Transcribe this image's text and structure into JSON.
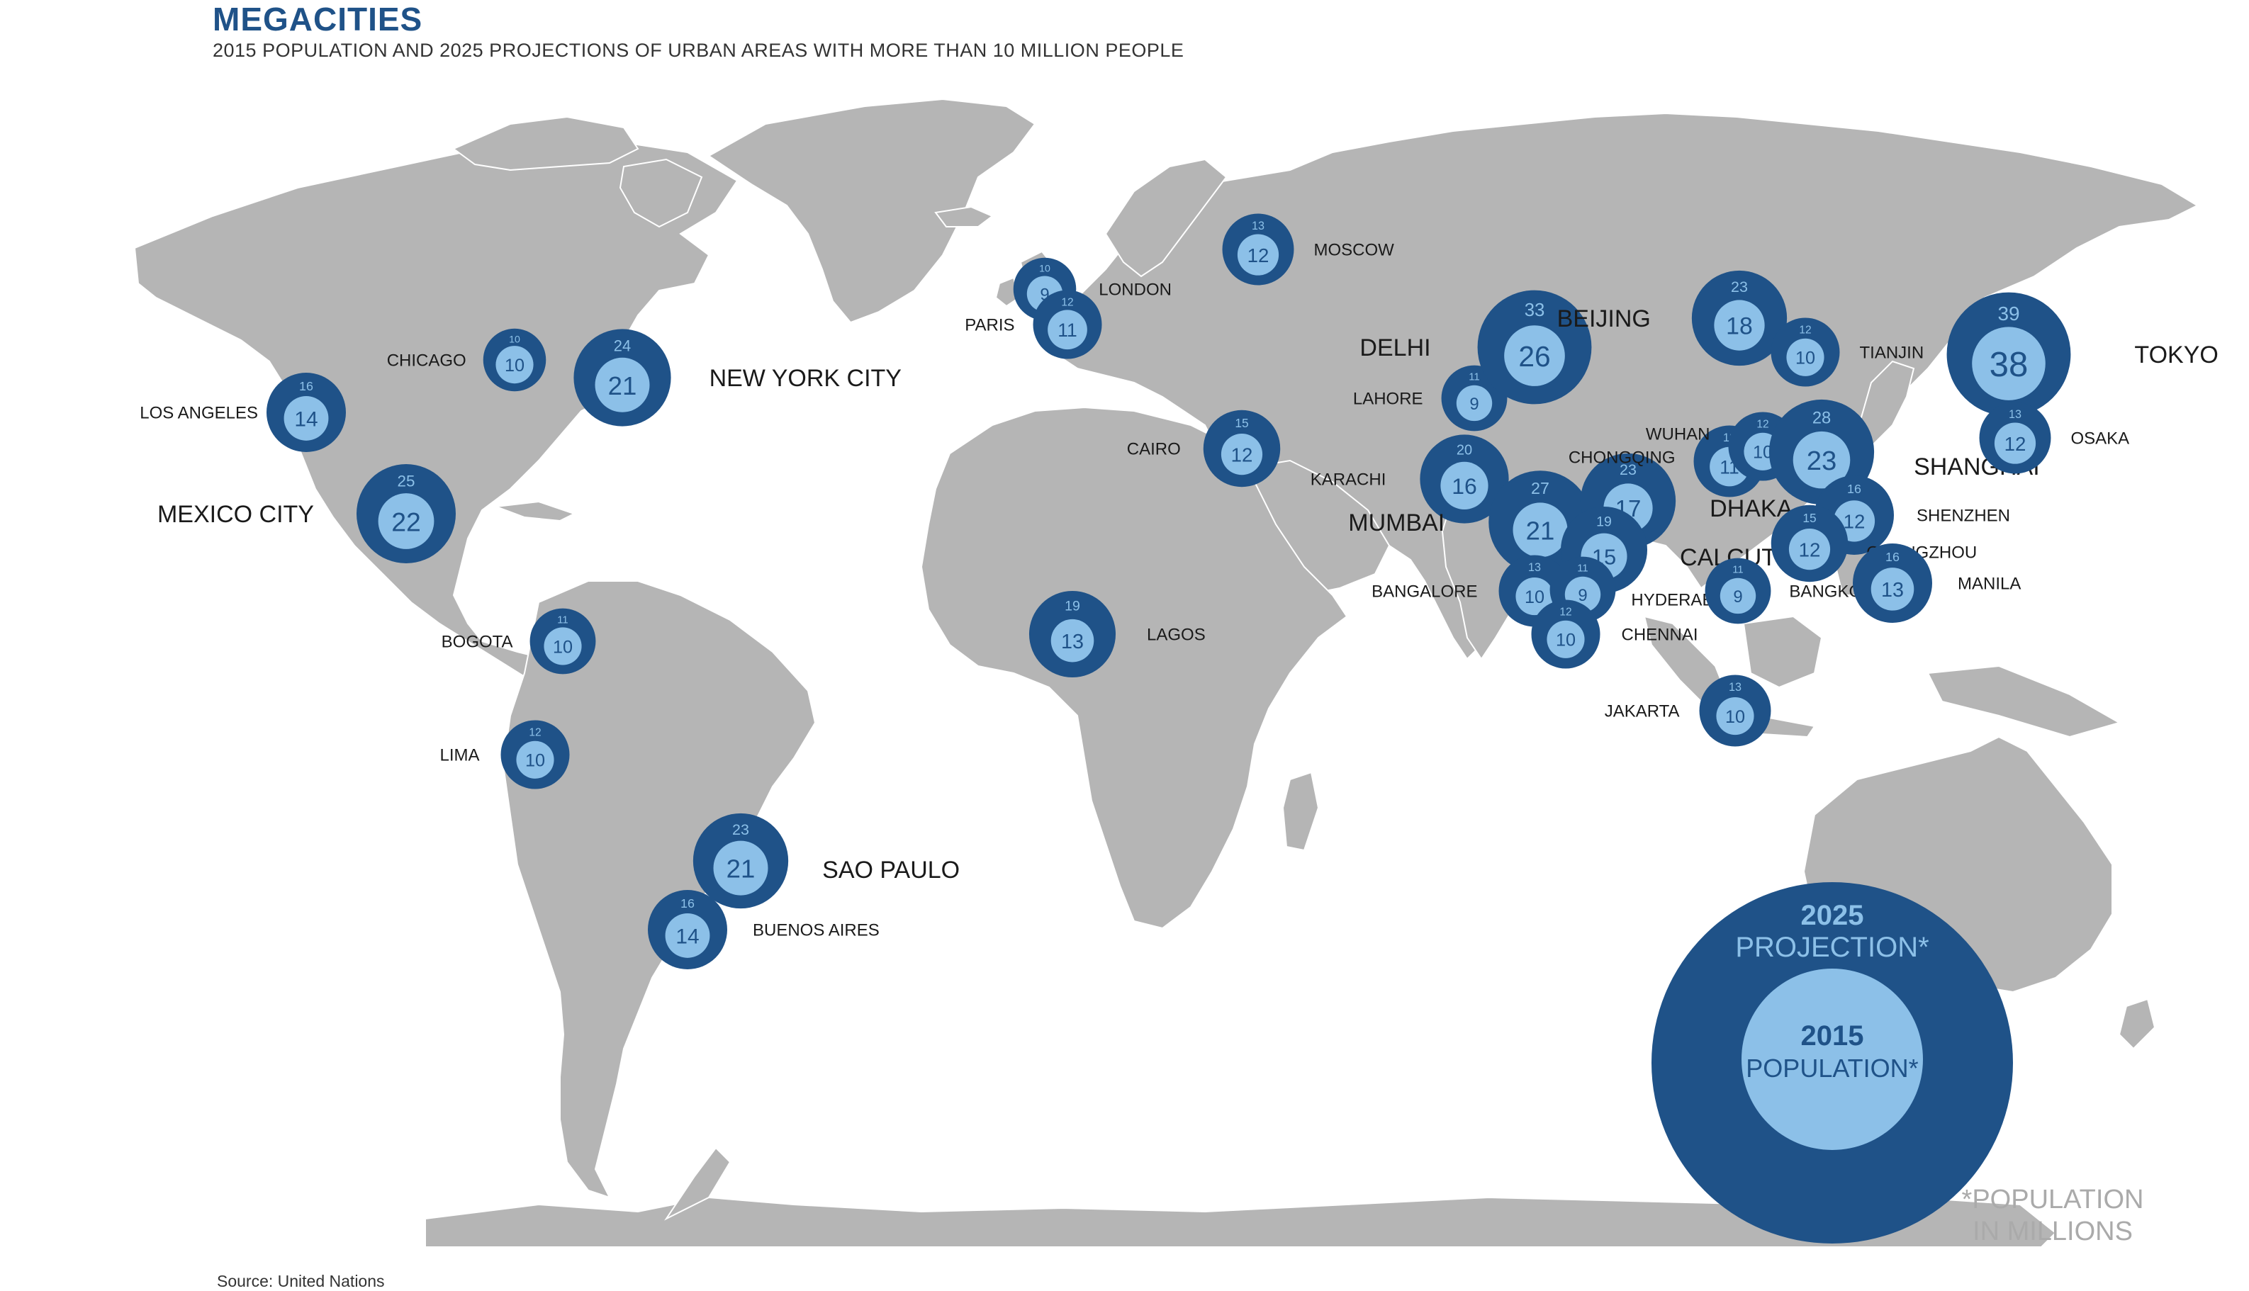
{
  "title": "MEGACITIES",
  "subtitle": "2015 POPULATION AND 2025 PROJECTIONS OF URBAN AREAS WITH MORE THAN 10 MILLION PEOPLE",
  "source": "Source: United Nations",
  "colors": {
    "land": "#b5b5b5",
    "projection_2025": "#1f5288",
    "population_2015": "#8cc0e8"
  },
  "legend": {
    "projection_year": "2025",
    "projection_label": "PROJECTION*",
    "population_year": "2015",
    "population_label": "POPULATION*",
    "units_line1": "*POPULATION",
    "units_line2": "IN MILLIONS"
  },
  "cities": [
    {
      "name": "LOS ANGELES",
      "pop_2015": 14,
      "pop_2025": 16
    },
    {
      "name": "CHICAGO",
      "pop_2015": 10,
      "pop_2025": 10
    },
    {
      "name": "NEW YORK CITY",
      "pop_2015": 21,
      "pop_2025": 24
    },
    {
      "name": "MEXICO CITY",
      "pop_2015": 22,
      "pop_2025": 25
    },
    {
      "name": "BOGOTA",
      "pop_2015": 10,
      "pop_2025": 11
    },
    {
      "name": "LIMA",
      "pop_2015": 10,
      "pop_2025": 12
    },
    {
      "name": "SAO PAULO",
      "pop_2015": 21,
      "pop_2025": 23
    },
    {
      "name": "BUENOS AIRES",
      "pop_2015": 14,
      "pop_2025": 16
    },
    {
      "name": "LONDON",
      "pop_2015": 9,
      "pop_2025": 10
    },
    {
      "name": "PARIS",
      "pop_2015": 11,
      "pop_2025": 12
    },
    {
      "name": "MOSCOW",
      "pop_2015": 12,
      "pop_2025": 13
    },
    {
      "name": "CAIRO",
      "pop_2015": 12,
      "pop_2025": 15
    },
    {
      "name": "LAGOS",
      "pop_2015": 13,
      "pop_2025": 19
    },
    {
      "name": "KARACHI",
      "pop_2015": 16,
      "pop_2025": 20
    },
    {
      "name": "LAHORE",
      "pop_2015": 9,
      "pop_2025": 11
    },
    {
      "name": "DELHI",
      "pop_2015": 26,
      "pop_2025": 33
    },
    {
      "name": "MUMBAI",
      "pop_2015": 21,
      "pop_2025": 27
    },
    {
      "name": "DHAKA",
      "pop_2015": 17,
      "pop_2025": 23
    },
    {
      "name": "CALCUTTA",
      "pop_2015": 15,
      "pop_2025": 19
    },
    {
      "name": "BANGALORE",
      "pop_2015": 10,
      "pop_2025": 13
    },
    {
      "name": "HYDERABAD",
      "pop_2015": 9,
      "pop_2025": 11
    },
    {
      "name": "CHENNAI",
      "pop_2015": 10,
      "pop_2025": 12
    },
    {
      "name": "BEIJING",
      "pop_2015": 18,
      "pop_2025": 23
    },
    {
      "name": "TIANJIN",
      "pop_2015": 10,
      "pop_2025": 12
    },
    {
      "name": "CHONGQING",
      "pop_2015": 11,
      "pop_2025": 13
    },
    {
      "name": "WUHAN",
      "pop_2015": 10,
      "pop_2025": 12
    },
    {
      "name": "SHANGHAI",
      "pop_2015": 23,
      "pop_2025": 28
    },
    {
      "name": "SHENZHEN",
      "pop_2015": 12,
      "pop_2025": 16
    },
    {
      "name": "GUANGZHOU",
      "pop_2015": 12,
      "pop_2025": 15
    },
    {
      "name": "BANGKOK",
      "pop_2015": 9,
      "pop_2025": 11
    },
    {
      "name": "MANILA",
      "pop_2015": 13,
      "pop_2025": 16
    },
    {
      "name": "JAKARTA",
      "pop_2015": 10,
      "pop_2025": 13
    },
    {
      "name": "TOKYO",
      "pop_2015": 38,
      "pop_2025": 39
    },
    {
      "name": "OSAKA",
      "pop_2015": 12,
      "pop_2025": 13
    }
  ]
}
